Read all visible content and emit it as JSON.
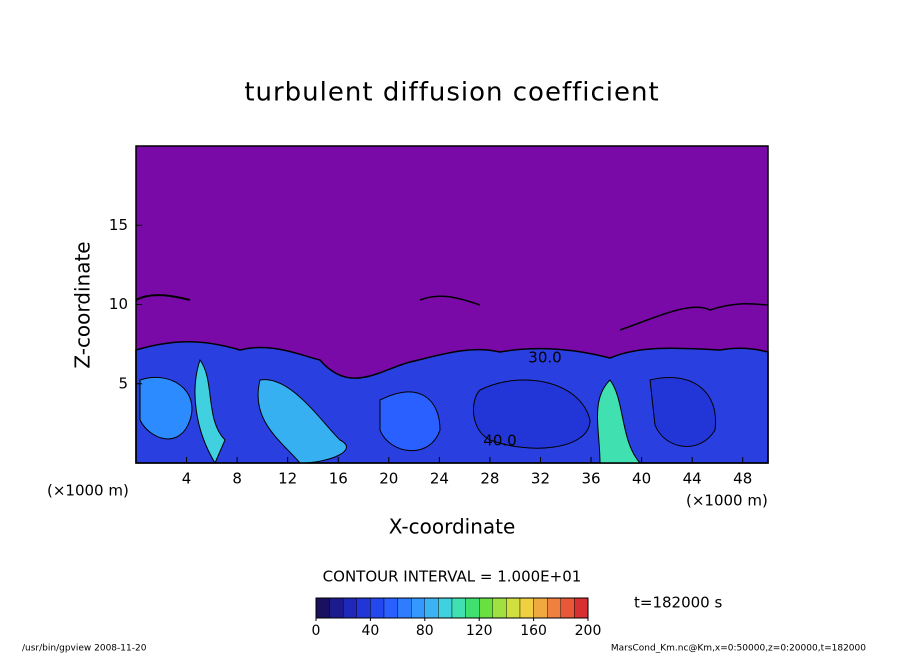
{
  "chart_data": {
    "type": "contour",
    "title": "turbulent diffusion coefficient",
    "x_label": "X-coordinate",
    "y_label": "Z-coordinate",
    "x_unit": "(×1000 m)",
    "y_unit": "(×1000 m)",
    "xlim": [
      0,
      50
    ],
    "xticks": [
      4,
      8,
      12,
      16,
      20,
      24,
      28,
      32,
      36,
      40,
      44,
      48
    ],
    "ylim": [
      0,
      20
    ],
    "yticks": [
      5,
      10,
      15
    ],
    "contour_labels": [
      {
        "value": 30,
        "label": "30.0"
      },
      {
        "value": 40,
        "label": "40.0"
      }
    ],
    "contour_interval_text": "CONTOUR INTERVAL = 1.000E+01",
    "time_text": "t=182000 s",
    "colorbar": {
      "lim": [
        0,
        200
      ],
      "ticks": [
        0,
        40,
        80,
        120,
        160,
        200
      ],
      "colors": [
        "#1a1060",
        "#1c1a8c",
        "#1f28b8",
        "#2236d8",
        "#2448f0",
        "#2a60ff",
        "#2f7cff",
        "#3598ff",
        "#3cb4f4",
        "#40d0e0",
        "#40e0b0",
        "#40e070",
        "#6ae040",
        "#a0e040",
        "#d0e040",
        "#f0d040",
        "#f0a840",
        "#f08040",
        "#e85838",
        "#d83030"
      ]
    },
    "footer_left": "/usr/bin/gpview   2008-11-20",
    "footer_right": "MarsCond_Km.nc@Km,x=0:50000,z=0:20000,t=182000"
  }
}
